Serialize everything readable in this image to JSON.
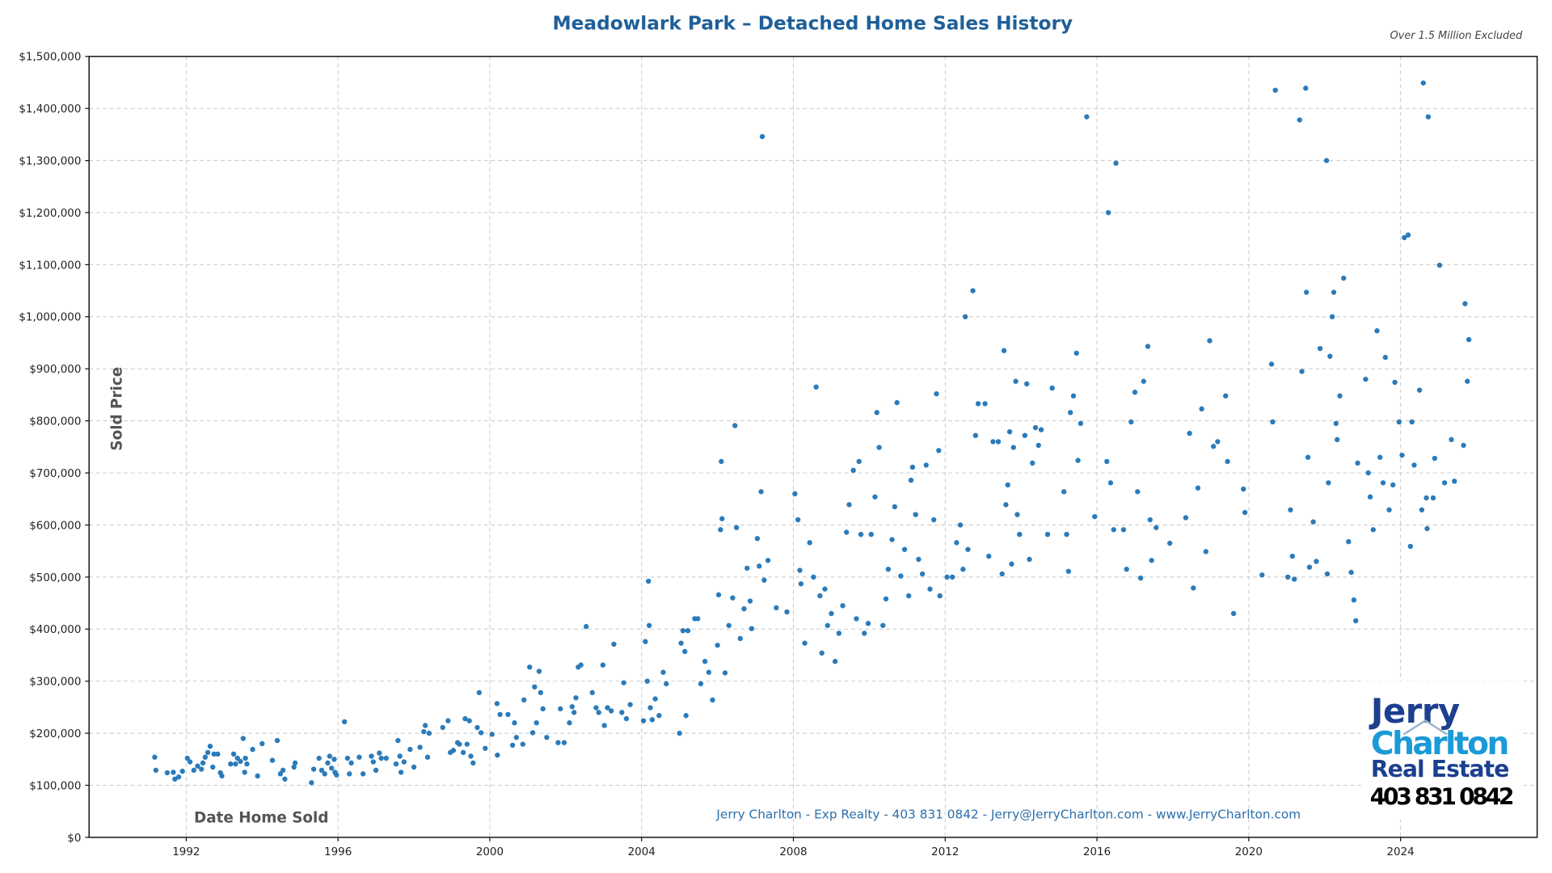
{
  "chart_data": {
    "type": "scatter",
    "title": "Meadowlark Park – Detached Home Sales History",
    "subtitle": "Over 1.5 Million Excluded",
    "xlabel": "Date Home Sold",
    "ylabel": "Sold Price",
    "xlim": [
      1989.44,
      2027.6
    ],
    "ylim": [
      0,
      1500000
    ],
    "x_ticks": [
      1992,
      1996,
      2000,
      2004,
      2008,
      2012,
      2016,
      2020,
      2024
    ],
    "x_tick_labels": [
      "1992",
      "1996",
      "2000",
      "2004",
      "2008",
      "2012",
      "2016",
      "2020",
      "2024"
    ],
    "y_ticks": [
      0,
      100000,
      200000,
      300000,
      400000,
      500000,
      600000,
      700000,
      800000,
      900000,
      1000000,
      1100000,
      1200000,
      1300000,
      1400000,
      1500000
    ],
    "y_tick_labels": [
      "$0",
      "$100,000",
      "$200,000",
      "$300,000",
      "$400,000",
      "$500,000",
      "$600,000",
      "$700,000",
      "$800,000",
      "$900,000",
      "$1,000,000",
      "$1,100,000",
      "$1,200,000",
      "$1,300,000",
      "$1,400,000",
      "$1,500,000"
    ],
    "grid": true,
    "point_color": "#2b7bba",
    "points": [
      [
        1991.17,
        154000
      ],
      [
        1991.2,
        129000
      ],
      [
        1991.5,
        124000
      ],
      [
        1991.66,
        125000
      ],
      [
        1991.7,
        112000
      ],
      [
        1991.8,
        116000
      ],
      [
        1991.9,
        127000
      ],
      [
        1992.03,
        152000
      ],
      [
        1992.1,
        145000
      ],
      [
        1992.2,
        129000
      ],
      [
        1992.3,
        137000
      ],
      [
        1992.4,
        131000
      ],
      [
        1992.44,
        143000
      ],
      [
        1992.5,
        154000
      ],
      [
        1992.57,
        163000
      ],
      [
        1992.63,
        175000
      ],
      [
        1992.7,
        135000
      ],
      [
        1992.73,
        160000
      ],
      [
        1992.83,
        160000
      ],
      [
        1992.9,
        124000
      ],
      [
        1992.94,
        118000
      ],
      [
        1993.17,
        141000
      ],
      [
        1993.25,
        160000
      ],
      [
        1993.3,
        141000
      ],
      [
        1993.35,
        152000
      ],
      [
        1993.43,
        146000
      ],
      [
        1993.5,
        190000
      ],
      [
        1993.54,
        125000
      ],
      [
        1993.56,
        152000
      ],
      [
        1993.6,
        141000
      ],
      [
        1993.75,
        169000
      ],
      [
        1993.88,
        118000
      ],
      [
        1994.0,
        180000
      ],
      [
        1994.27,
        148000
      ],
      [
        1994.4,
        186000
      ],
      [
        1994.48,
        122000
      ],
      [
        1994.55,
        129000
      ],
      [
        1994.6,
        112000
      ],
      [
        1994.84,
        135000
      ],
      [
        1994.87,
        143000
      ],
      [
        1995.3,
        105000
      ],
      [
        1995.36,
        131000
      ],
      [
        1995.5,
        152000
      ],
      [
        1995.57,
        129000
      ],
      [
        1995.65,
        122000
      ],
      [
        1995.73,
        143000
      ],
      [
        1995.78,
        156000
      ],
      [
        1995.83,
        133000
      ],
      [
        1995.9,
        150000
      ],
      [
        1995.92,
        125000
      ],
      [
        1995.96,
        120000
      ],
      [
        1996.17,
        222000
      ],
      [
        1996.25,
        152000
      ],
      [
        1996.3,
        122000
      ],
      [
        1996.35,
        143000
      ],
      [
        1996.56,
        154000
      ],
      [
        1996.66,
        122000
      ],
      [
        1996.88,
        156000
      ],
      [
        1996.93,
        145000
      ],
      [
        1997.0,
        129000
      ],
      [
        1997.09,
        162000
      ],
      [
        1997.14,
        152000
      ],
      [
        1997.27,
        152000
      ],
      [
        1997.53,
        141000
      ],
      [
        1997.58,
        186000
      ],
      [
        1997.63,
        156000
      ],
      [
        1997.66,
        125000
      ],
      [
        1997.74,
        145000
      ],
      [
        1997.9,
        169000
      ],
      [
        1998.0,
        135000
      ],
      [
        1998.16,
        173000
      ],
      [
        1998.26,
        203000
      ],
      [
        1998.3,
        215000
      ],
      [
        1998.36,
        154000
      ],
      [
        1998.4,
        200000
      ],
      [
        1998.76,
        211000
      ],
      [
        1998.9,
        224000
      ],
      [
        1998.96,
        163000
      ],
      [
        1999.04,
        167000
      ],
      [
        1999.15,
        182000
      ],
      [
        1999.2,
        179000
      ],
      [
        1999.3,
        163000
      ],
      [
        1999.35,
        228000
      ],
      [
        1999.4,
        179000
      ],
      [
        1999.46,
        224000
      ],
      [
        1999.5,
        156000
      ],
      [
        1999.56,
        143000
      ],
      [
        1999.67,
        211000
      ],
      [
        1999.72,
        278000
      ],
      [
        1999.77,
        201000
      ],
      [
        1999.88,
        171000
      ],
      [
        2000.06,
        198000
      ],
      [
        2000.19,
        257000
      ],
      [
        2000.2,
        158000
      ],
      [
        2000.27,
        236000
      ],
      [
        2000.48,
        236000
      ],
      [
        2000.6,
        177000
      ],
      [
        2000.65,
        220000
      ],
      [
        2000.7,
        192000
      ],
      [
        2000.87,
        179000
      ],
      [
        2000.9,
        264000
      ],
      [
        2001.05,
        327000
      ],
      [
        2001.13,
        201000
      ],
      [
        2001.18,
        289000
      ],
      [
        2001.23,
        220000
      ],
      [
        2001.3,
        319000
      ],
      [
        2001.34,
        278000
      ],
      [
        2001.4,
        247000
      ],
      [
        2001.5,
        192000
      ],
      [
        2001.8,
        182000
      ],
      [
        2001.86,
        247000
      ],
      [
        2001.96,
        182000
      ],
      [
        2002.1,
        220000
      ],
      [
        2002.17,
        251000
      ],
      [
        2002.22,
        240000
      ],
      [
        2002.27,
        268000
      ],
      [
        2002.33,
        327000
      ],
      [
        2002.4,
        331000
      ],
      [
        2002.54,
        405000
      ],
      [
        2002.7,
        278000
      ],
      [
        2002.8,
        249000
      ],
      [
        2002.87,
        240000
      ],
      [
        2002.98,
        331000
      ],
      [
        2003.02,
        215000
      ],
      [
        2003.1,
        249000
      ],
      [
        2003.2,
        243000
      ],
      [
        2003.27,
        371000
      ],
      [
        2003.48,
        240000
      ],
      [
        2003.53,
        297000
      ],
      [
        2003.6,
        228000
      ],
      [
        2003.7,
        255000
      ],
      [
        2004.05,
        224000
      ],
      [
        2004.1,
        376000
      ],
      [
        2004.15,
        300000
      ],
      [
        2004.18,
        492000
      ],
      [
        2004.2,
        407000
      ],
      [
        2004.23,
        249000
      ],
      [
        2004.28,
        226000
      ],
      [
        2004.36,
        266000
      ],
      [
        2004.46,
        234000
      ],
      [
        2004.57,
        317000
      ],
      [
        2004.65,
        295000
      ],
      [
        2005.0,
        200000
      ],
      [
        2005.04,
        373000
      ],
      [
        2005.09,
        397000
      ],
      [
        2005.14,
        357000
      ],
      [
        2005.17,
        234000
      ],
      [
        2005.22,
        397000
      ],
      [
        2005.4,
        420000
      ],
      [
        2005.48,
        420000
      ],
      [
        2005.56,
        295000
      ],
      [
        2005.67,
        338000
      ],
      [
        2005.77,
        317000
      ],
      [
        2005.87,
        264000
      ],
      [
        2006.0,
        369000
      ],
      [
        2006.03,
        466000
      ],
      [
        2006.08,
        591000
      ],
      [
        2006.1,
        722000
      ],
      [
        2006.12,
        612000
      ],
      [
        2006.2,
        316000
      ],
      [
        2006.3,
        407000
      ],
      [
        2006.4,
        460000
      ],
      [
        2006.46,
        791000
      ],
      [
        2006.5,
        595000
      ],
      [
        2006.6,
        382000
      ],
      [
        2006.7,
        439000
      ],
      [
        2006.78,
        517000
      ],
      [
        2006.86,
        454000
      ],
      [
        2006.9,
        401000
      ],
      [
        2007.05,
        574000
      ],
      [
        2007.1,
        521000
      ],
      [
        2007.15,
        664000
      ],
      [
        2007.18,
        1346000
      ],
      [
        2007.23,
        494000
      ],
      [
        2007.33,
        532000
      ],
      [
        2007.55,
        441000
      ],
      [
        2007.83,
        433000
      ],
      [
        2008.04,
        660000
      ],
      [
        2008.12,
        610000
      ],
      [
        2008.17,
        513000
      ],
      [
        2008.2,
        487000
      ],
      [
        2008.3,
        373000
      ],
      [
        2008.43,
        566000
      ],
      [
        2008.53,
        500000
      ],
      [
        2008.6,
        865000
      ],
      [
        2008.7,
        464000
      ],
      [
        2008.75,
        354000
      ],
      [
        2008.83,
        477000
      ],
      [
        2008.9,
        407000
      ],
      [
        2009.0,
        430000
      ],
      [
        2009.1,
        338000
      ],
      [
        2009.2,
        392000
      ],
      [
        2009.3,
        445000
      ],
      [
        2009.4,
        586000
      ],
      [
        2009.47,
        639000
      ],
      [
        2009.58,
        705000
      ],
      [
        2009.66,
        420000
      ],
      [
        2009.73,
        722000
      ],
      [
        2009.78,
        582000
      ],
      [
        2009.87,
        392000
      ],
      [
        2009.97,
        411000
      ],
      [
        2010.05,
        582000
      ],
      [
        2010.15,
        654000
      ],
      [
        2010.2,
        816000
      ],
      [
        2010.26,
        749000
      ],
      [
        2010.36,
        407000
      ],
      [
        2010.44,
        458000
      ],
      [
        2010.5,
        515000
      ],
      [
        2010.6,
        572000
      ],
      [
        2010.67,
        635000
      ],
      [
        2010.73,
        835000
      ],
      [
        2010.83,
        502000
      ],
      [
        2010.93,
        553000
      ],
      [
        2011.04,
        464000
      ],
      [
        2011.1,
        686000
      ],
      [
        2011.14,
        711000
      ],
      [
        2011.22,
        620000
      ],
      [
        2011.3,
        534000
      ],
      [
        2011.4,
        506000
      ],
      [
        2011.5,
        715000
      ],
      [
        2011.6,
        477000
      ],
      [
        2011.7,
        610000
      ],
      [
        2011.77,
        852000
      ],
      [
        2011.83,
        743000
      ],
      [
        2011.86,
        464000
      ],
      [
        2012.05,
        500000
      ],
      [
        2012.19,
        500000
      ],
      [
        2012.3,
        566000
      ],
      [
        2012.4,
        600000
      ],
      [
        2012.47,
        515000
      ],
      [
        2012.53,
        1000000
      ],
      [
        2012.6,
        553000
      ],
      [
        2012.73,
        1050000
      ],
      [
        2012.8,
        772000
      ],
      [
        2012.87,
        833000
      ],
      [
        2013.05,
        833000
      ],
      [
        2013.15,
        540000
      ],
      [
        2013.26,
        760000
      ],
      [
        2013.4,
        760000
      ],
      [
        2013.5,
        506000
      ],
      [
        2013.55,
        935000
      ],
      [
        2013.6,
        639000
      ],
      [
        2013.65,
        677000
      ],
      [
        2013.7,
        779000
      ],
      [
        2013.75,
        525000
      ],
      [
        2013.8,
        749000
      ],
      [
        2013.86,
        876000
      ],
      [
        2013.9,
        620000
      ],
      [
        2013.96,
        582000
      ],
      [
        2014.1,
        772000
      ],
      [
        2014.15,
        871000
      ],
      [
        2014.22,
        534000
      ],
      [
        2014.3,
        719000
      ],
      [
        2014.38,
        787000
      ],
      [
        2014.46,
        753000
      ],
      [
        2014.53,
        783000
      ],
      [
        2014.7,
        582000
      ],
      [
        2014.82,
        863000
      ],
      [
        2015.13,
        664000
      ],
      [
        2015.2,
        582000
      ],
      [
        2015.25,
        511000
      ],
      [
        2015.3,
        816000
      ],
      [
        2015.38,
        848000
      ],
      [
        2015.46,
        930000
      ],
      [
        2015.5,
        724000
      ],
      [
        2015.57,
        795000
      ],
      [
        2015.73,
        1384000
      ],
      [
        2015.94,
        616000
      ],
      [
        2016.26,
        722000
      ],
      [
        2016.3,
        1200000
      ],
      [
        2016.36,
        681000
      ],
      [
        2016.44,
        591000
      ],
      [
        2016.5,
        1295000
      ],
      [
        2016.7,
        591000
      ],
      [
        2016.78,
        515000
      ],
      [
        2016.9,
        798000
      ],
      [
        2017.0,
        855000
      ],
      [
        2017.07,
        664000
      ],
      [
        2017.15,
        498000
      ],
      [
        2017.23,
        876000
      ],
      [
        2017.34,
        943000
      ],
      [
        2017.4,
        610000
      ],
      [
        2017.44,
        532000
      ],
      [
        2017.56,
        595000
      ],
      [
        2017.92,
        565000
      ],
      [
        2018.34,
        614000
      ],
      [
        2018.44,
        776000
      ],
      [
        2018.54,
        479000
      ],
      [
        2018.66,
        671000
      ],
      [
        2018.76,
        823000
      ],
      [
        2018.87,
        549000
      ],
      [
        2018.97,
        954000
      ],
      [
        2019.07,
        751000
      ],
      [
        2019.18,
        760000
      ],
      [
        2019.39,
        848000
      ],
      [
        2019.44,
        722000
      ],
      [
        2019.6,
        430000
      ],
      [
        2019.86,
        669000
      ],
      [
        2019.9,
        624000
      ],
      [
        2020.35,
        504000
      ],
      [
        2020.6,
        909000
      ],
      [
        2020.63,
        798000
      ],
      [
        2020.7,
        1435000
      ],
      [
        2021.03,
        500000
      ],
      [
        2021.1,
        629000
      ],
      [
        2021.15,
        540000
      ],
      [
        2021.2,
        496000
      ],
      [
        2021.34,
        1378000
      ],
      [
        2021.4,
        895000
      ],
      [
        2021.5,
        1439000
      ],
      [
        2021.52,
        1047000
      ],
      [
        2021.56,
        730000
      ],
      [
        2021.6,
        519000
      ],
      [
        2021.7,
        606000
      ],
      [
        2021.78,
        530000
      ],
      [
        2021.88,
        939000
      ],
      [
        2022.05,
        1300000
      ],
      [
        2022.07,
        506000
      ],
      [
        2022.1,
        681000
      ],
      [
        2022.14,
        924000
      ],
      [
        2022.2,
        1000000
      ],
      [
        2022.24,
        1047000
      ],
      [
        2022.3,
        795000
      ],
      [
        2022.33,
        764000
      ],
      [
        2022.4,
        848000
      ],
      [
        2022.5,
        1074000
      ],
      [
        2022.63,
        568000
      ],
      [
        2022.7,
        509000
      ],
      [
        2022.77,
        456000
      ],
      [
        2022.82,
        416000
      ],
      [
        2022.87,
        719000
      ],
      [
        2023.08,
        880000
      ],
      [
        2023.15,
        700000
      ],
      [
        2023.2,
        654000
      ],
      [
        2023.28,
        591000
      ],
      [
        2023.38,
        973000
      ],
      [
        2023.46,
        730000
      ],
      [
        2023.54,
        681000
      ],
      [
        2023.6,
        922000
      ],
      [
        2023.7,
        629000
      ],
      [
        2023.8,
        677000
      ],
      [
        2023.85,
        874000
      ],
      [
        2023.96,
        798000
      ],
      [
        2024.04,
        734000
      ],
      [
        2024.1,
        1152000
      ],
      [
        2024.2,
        1157000
      ],
      [
        2024.26,
        559000
      ],
      [
        2024.3,
        798000
      ],
      [
        2024.36,
        715000
      ],
      [
        2024.5,
        859000
      ],
      [
        2024.56,
        629000
      ],
      [
        2024.6,
        1449000
      ],
      [
        2024.68,
        652000
      ],
      [
        2024.7,
        593000
      ],
      [
        2024.73,
        1384000
      ],
      [
        2024.86,
        652000
      ],
      [
        2024.9,
        728000
      ],
      [
        2025.03,
        1099000
      ],
      [
        2025.16,
        681000
      ],
      [
        2025.34,
        764000
      ],
      [
        2025.42,
        684000
      ],
      [
        2025.66,
        753000
      ],
      [
        2025.7,
        1025000
      ],
      [
        2025.76,
        876000
      ],
      [
        2025.8,
        956000
      ]
    ]
  },
  "footer": {
    "credit": "Jerry Charlton - Exp Realty - 403 831 0842 - Jerry@JerryCharlton.com - www.JerryCharlton.com"
  },
  "logo": {
    "line1": "Jerry",
    "line2": "Charlton",
    "line3": "Real Estate",
    "phone": "403 831 0842",
    "colors": {
      "navy": "#1c3f8f",
      "light_blue": "#1a9ad6"
    }
  },
  "colors": {
    "title": "#1f5f99",
    "credit": "#2b6fab"
  }
}
